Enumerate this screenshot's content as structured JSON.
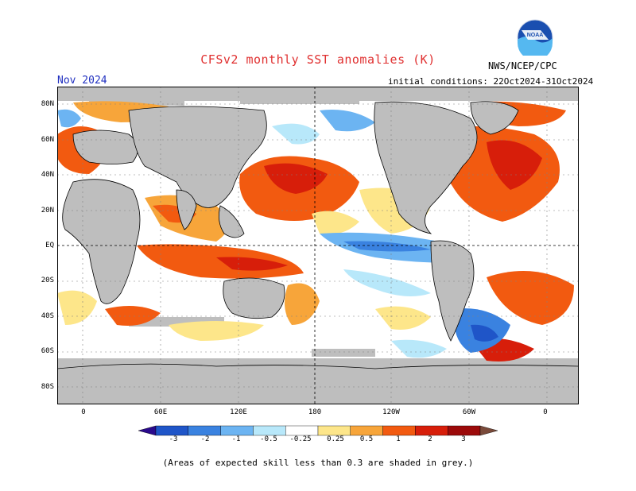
{
  "header": {
    "title": "CFSv2 monthly SST anomalies (K)",
    "month": "Nov 2024",
    "initial_conditions": "initial conditions: 22Oct2024-31Oct2024",
    "agency": "NWS/NCEP/CPC",
    "logo_text": "NOAA"
  },
  "map": {
    "x_labels": [
      "0",
      "60E",
      "120E",
      "180",
      "120W",
      "60W",
      "0"
    ],
    "y_labels": [
      "80N",
      "60N",
      "40N",
      "20N",
      "EQ",
      "20S",
      "40S",
      "60S",
      "80S"
    ],
    "colors": {
      "land": "#bebebe",
      "ocean_neutral": "#ffffff",
      "grid": "#808080"
    }
  },
  "colorbar": {
    "labels": [
      "-3",
      "-2",
      "-1",
      "-0.5",
      "-0.25",
      "0.25",
      "0.5",
      "1",
      "2",
      "3"
    ],
    "colors": [
      "#2a0a8c",
      "#1f55c8",
      "#3a82e0",
      "#6cb4f2",
      "#b8e8fa",
      "#ffffff",
      "#fde68a",
      "#f7a53a",
      "#f25a10",
      "#d71e0a",
      "#9c0a0a",
      "#7a4a3a"
    ]
  },
  "footer": {
    "note": "(Areas of expected skill less than 0.3 are shaded in grey.)"
  }
}
